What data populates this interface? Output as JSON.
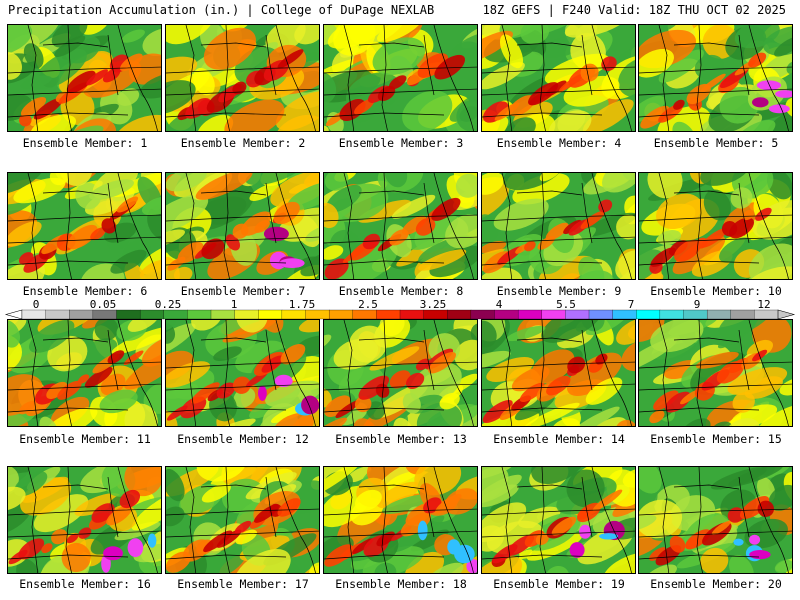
{
  "header": {
    "title_left": "Precipitation Accumulation (in.) | College of DuPage NEXLAB",
    "title_right": "18Z GEFS | F240 Valid: 18Z THU OCT 02 2025"
  },
  "panels": [
    {
      "label": "Ensemble Member: 1"
    },
    {
      "label": "Ensemble Member: 2"
    },
    {
      "label": "Ensemble Member: 3"
    },
    {
      "label": "Ensemble Member: 4"
    },
    {
      "label": "Ensemble Member: 5"
    },
    {
      "label": "Ensemble Member: 6"
    },
    {
      "label": "Ensemble Member: 7"
    },
    {
      "label": "Ensemble Member: 8"
    },
    {
      "label": "Ensemble Member: 9"
    },
    {
      "label": "Ensemble Member: 10"
    },
    {
      "label": "Ensemble Member: 11"
    },
    {
      "label": "Ensemble Member: 12"
    },
    {
      "label": "Ensemble Member: 13"
    },
    {
      "label": "Ensemble Member: 14"
    },
    {
      "label": "Ensemble Member: 15"
    },
    {
      "label": "Ensemble Member: 16"
    },
    {
      "label": "Ensemble Member: 17"
    },
    {
      "label": "Ensemble Member: 18"
    },
    {
      "label": "Ensemble Member: 19"
    },
    {
      "label": "Ensemble Member: 20"
    }
  ],
  "legend": {
    "tick_labels": [
      "0",
      "0.05",
      "0.25",
      "1",
      "1.75",
      "2.5",
      "3.25",
      "4",
      "5.5",
      "7",
      "9",
      "12"
    ],
    "colors": [
      "#e6e6e6",
      "#c8c8c8",
      "#a0a0a0",
      "#787878",
      "#1f6e1f",
      "#2c8c2c",
      "#3aa83a",
      "#5cc83c",
      "#a8e040",
      "#e8f028",
      "#ffff00",
      "#ffe000",
      "#ffc000",
      "#ffa000",
      "#ff7800",
      "#ff4000",
      "#e81010",
      "#c80000",
      "#a00014",
      "#8c0050",
      "#b40082",
      "#dc00c0",
      "#f040f0",
      "#b070ff",
      "#7090ff",
      "#30c0ff",
      "#00ffff",
      "#40e0e0",
      "#50c8c8",
      "#90b0b0",
      "#a0a0a0",
      "#c8c8c8"
    ]
  }
}
